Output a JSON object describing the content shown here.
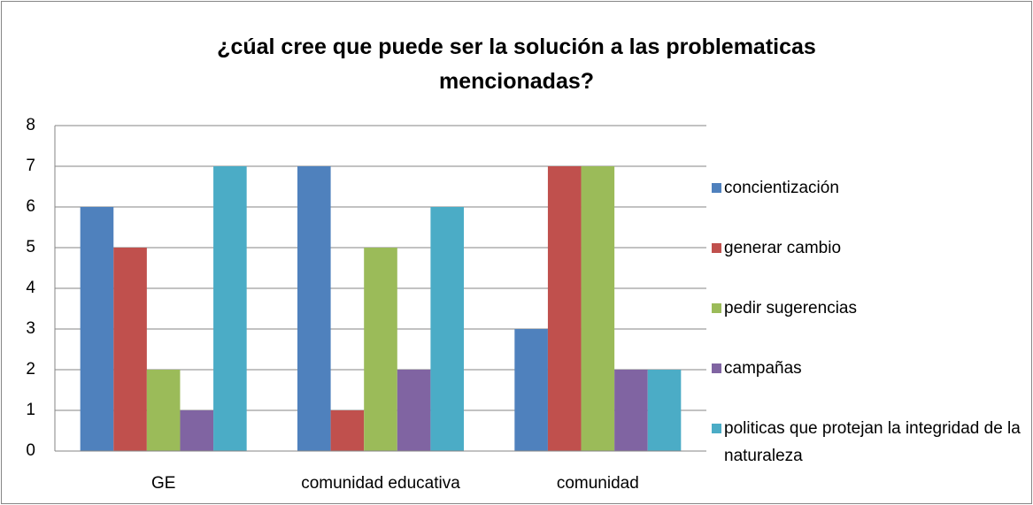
{
  "chart_data": {
    "type": "bar",
    "title": "¿cúal cree que puede ser la solución a las problematicas mencionadas?",
    "categories": [
      "GE",
      "comunidad educativa",
      "comunidad"
    ],
    "series": [
      {
        "name": "concientización",
        "color": "#4f81bd",
        "values": [
          6,
          7,
          3
        ]
      },
      {
        "name": "generar cambio",
        "color": "#c0504d",
        "values": [
          5,
          1,
          7
        ]
      },
      {
        "name": "pedir sugerencias",
        "color": "#9bbb59",
        "values": [
          2,
          5,
          7
        ]
      },
      {
        "name": "campañas",
        "color": "#8064a2",
        "values": [
          1,
          2,
          2
        ]
      },
      {
        "name": "politicas que protejan la integridad de la naturaleza",
        "color": "#4bacc6",
        "values": [
          7,
          6,
          2
        ]
      }
    ],
    "ylim": [
      0,
      8
    ],
    "yticks": [
      0,
      1,
      2,
      3,
      4,
      5,
      6,
      7,
      8
    ],
    "grid": true,
    "legend": "right"
  }
}
